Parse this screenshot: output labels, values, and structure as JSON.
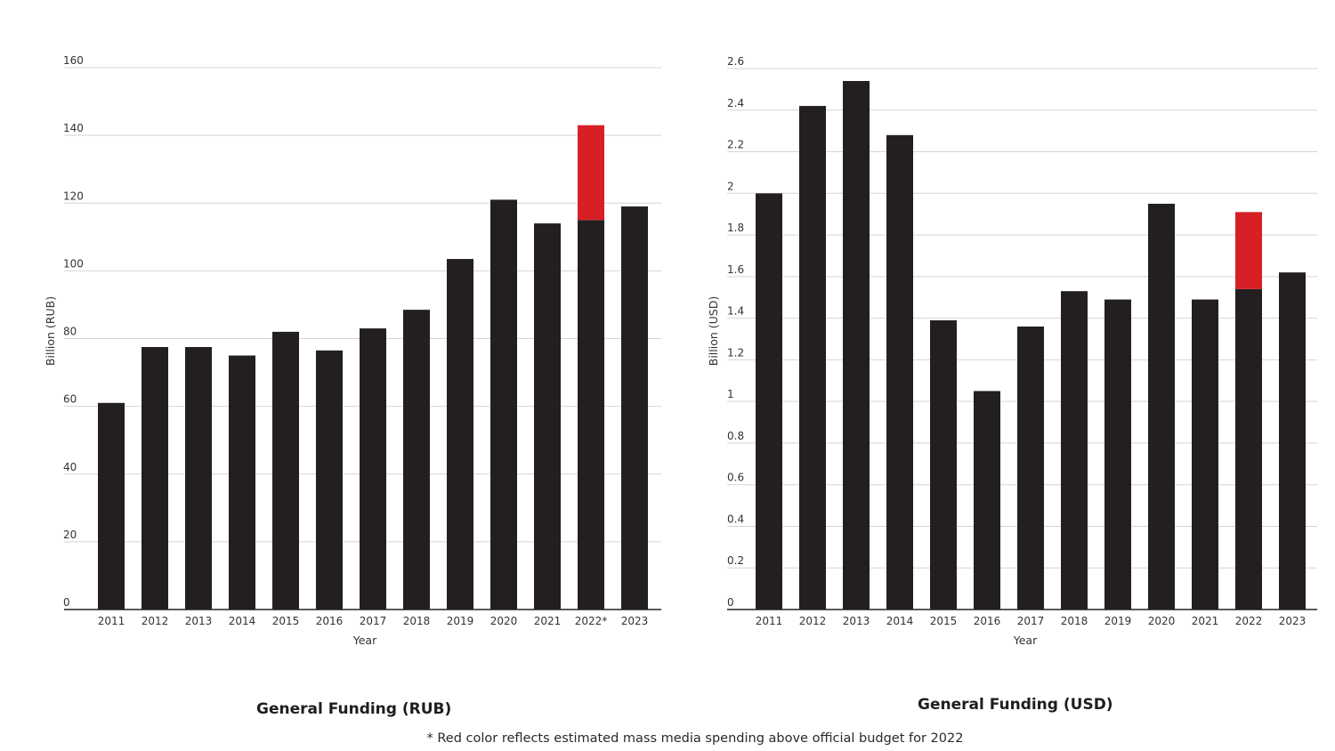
{
  "chart_data": [
    {
      "type": "bar",
      "stacked": true,
      "title": "General Funding (RUB)",
      "xlabel": "Year",
      "ylabel": "Billion (RUB)",
      "ylim": [
        0,
        160
      ],
      "yticks": [
        "0",
        "20",
        "40",
        "60",
        "80",
        "100",
        "120",
        "140",
        "160"
      ],
      "categories": [
        "2011",
        "2012",
        "2013",
        "2014",
        "2015",
        "2016",
        "2017",
        "2018",
        "2019",
        "2020",
        "2021",
        "2022*",
        "2023"
      ],
      "series": [
        {
          "values": [
            61,
            77.5,
            77.5,
            75,
            82,
            76.5,
            83,
            88.5,
            103.5,
            121,
            114,
            115,
            119
          ],
          "color": "#231f20"
        },
        {
          "values": [
            0,
            0,
            0,
            0,
            0,
            0,
            0,
            0,
            0,
            0,
            0,
            28,
            0
          ],
          "color": "#d71f26"
        }
      ],
      "grid": true,
      "legend": "none"
    },
    {
      "type": "bar",
      "stacked": true,
      "title": "General Funding (USD)",
      "xlabel": "Year",
      "ylabel": "Billion (USD)",
      "ylim": [
        0,
        2.6
      ],
      "yticks": [
        "0",
        "0.2",
        "0.4",
        "0.6",
        "0.8",
        "1",
        "1.2",
        "1.4",
        "1.6",
        "1.8",
        "2",
        "2.2",
        "2.4",
        "2.6"
      ],
      "categories": [
        "2011",
        "2012",
        "2013",
        "2014",
        "2015",
        "2016",
        "2017",
        "2018",
        "2019",
        "2020",
        "2021",
        "2022",
        "2023"
      ],
      "series": [
        {
          "values": [
            2.0,
            2.42,
            2.54,
            2.28,
            1.39,
            1.05,
            1.36,
            1.53,
            1.49,
            1.95,
            1.49,
            1.54,
            1.62
          ],
          "color": "#231f20"
        },
        {
          "values": [
            0,
            0,
            0,
            0,
            0,
            0,
            0,
            0,
            0,
            0,
            0,
            0.37,
            0
          ],
          "color": "#d71f26"
        }
      ],
      "grid": true,
      "legend": "none"
    }
  ],
  "footnote": "* Red color reflects  estimated mass media spending above official budget for 2022"
}
